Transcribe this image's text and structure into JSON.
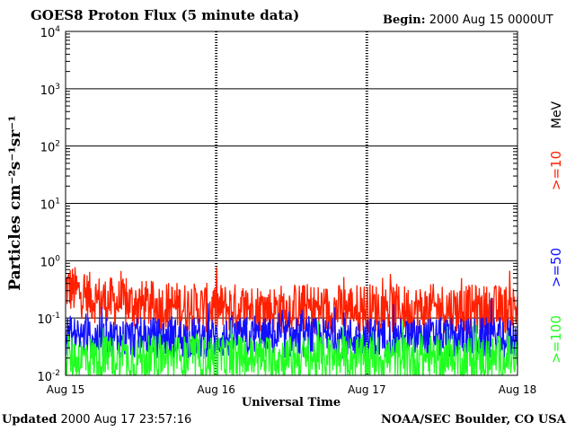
{
  "header": {
    "title": "GOES8 Proton Flux (5 minute data)",
    "begin_label": "Begin:",
    "begin_value": "2000 Aug 15 0000UT"
  },
  "footer": {
    "updated_label": "Updated",
    "updated_value": "2000 Aug 17 23:57:16",
    "credit": "NOAA/SEC Boulder, CO USA"
  },
  "chart_data": {
    "type": "line",
    "title": "GOES8 Proton Flux (5 minute data)",
    "xlabel": "Universal Time",
    "ylabel": "Particles cm⁻²s⁻¹sr⁻¹",
    "y_scale": "log",
    "ylim": [
      0.01,
      10000
    ],
    "y_ticks": [
      {
        "value": 0.01,
        "base": "10",
        "exp": "-2"
      },
      {
        "value": 0.1,
        "base": "10",
        "exp": "-1"
      },
      {
        "value": 1,
        "base": "10",
        "exp": "0"
      },
      {
        "value": 10,
        "base": "10",
        "exp": "1"
      },
      {
        "value": 100,
        "base": "10",
        "exp": "2"
      },
      {
        "value": 1000,
        "base": "10",
        "exp": "3"
      },
      {
        "value": 10000,
        "base": "10",
        "exp": "4"
      }
    ],
    "x_ticks": [
      "Aug 15",
      "Aug 16",
      "Aug 17",
      "Aug 18"
    ],
    "xlim": [
      "2000-08-15 00:00",
      "2000-08-18 00:00"
    ],
    "grid": true,
    "legend_position": "right",
    "legend_unit": "MeV",
    "series": [
      {
        "name": ">=10",
        "color": "#ff2000",
        "x": [
          "2000-08-15 00:00",
          "2000-08-15 03:00",
          "2000-08-15 06:00",
          "2000-08-15 09:00",
          "2000-08-15 12:00",
          "2000-08-15 15:00",
          "2000-08-15 18:00",
          "2000-08-15 21:00",
          "2000-08-16 00:00",
          "2000-08-16 03:00",
          "2000-08-16 06:00",
          "2000-08-16 09:00",
          "2000-08-16 12:00",
          "2000-08-16 15:00",
          "2000-08-16 18:00",
          "2000-08-16 21:00",
          "2000-08-17 00:00",
          "2000-08-17 03:00",
          "2000-08-17 06:00",
          "2000-08-17 09:00",
          "2000-08-17 12:00",
          "2000-08-17 15:00",
          "2000-08-17 18:00",
          "2000-08-17 21:00",
          "2000-08-18 00:00"
        ],
        "values": [
          0.35,
          0.25,
          0.2,
          0.18,
          0.17,
          0.16,
          0.16,
          0.15,
          0.15,
          0.15,
          0.15,
          0.14,
          0.15,
          0.15,
          0.14,
          0.15,
          0.15,
          0.15,
          0.14,
          0.14,
          0.15,
          0.14,
          0.14,
          0.14,
          0.15
        ]
      },
      {
        "name": ">=50",
        "color": "#1010ff",
        "x": [
          "2000-08-15 00:00",
          "2000-08-15 06:00",
          "2000-08-15 12:00",
          "2000-08-15 18:00",
          "2000-08-16 00:00",
          "2000-08-16 06:00",
          "2000-08-16 12:00",
          "2000-08-16 18:00",
          "2000-08-17 00:00",
          "2000-08-17 06:00",
          "2000-08-17 12:00",
          "2000-08-17 18:00",
          "2000-08-18 00:00"
        ],
        "values": [
          0.05,
          0.045,
          0.045,
          0.045,
          0.045,
          0.045,
          0.045,
          0.045,
          0.045,
          0.045,
          0.045,
          0.045,
          0.045
        ]
      },
      {
        "name": ">=100",
        "color": "#20ff20",
        "x": [
          "2000-08-15 00:00",
          "2000-08-15 06:00",
          "2000-08-15 12:00",
          "2000-08-15 18:00",
          "2000-08-16 00:00",
          "2000-08-16 06:00",
          "2000-08-16 12:00",
          "2000-08-16 18:00",
          "2000-08-17 00:00",
          "2000-08-17 06:00",
          "2000-08-17 12:00",
          "2000-08-17 18:00",
          "2000-08-18 00:00"
        ],
        "values": [
          0.02,
          0.02,
          0.02,
          0.02,
          0.02,
          0.02,
          0.02,
          0.02,
          0.02,
          0.02,
          0.02,
          0.02,
          0.02
        ]
      }
    ]
  }
}
